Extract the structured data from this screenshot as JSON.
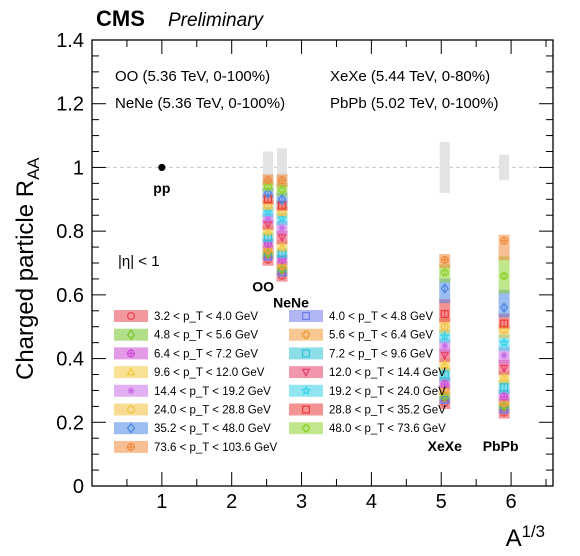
{
  "header": {
    "experiment": "CMS",
    "status": "Preliminary"
  },
  "colors": {
    "bins": [
      "#e8434f",
      "#6f7be8",
      "#72c42a",
      "#f09b36",
      "#cc49d6",
      "#2cc3d6",
      "#f2c83a",
      "#e83f6a",
      "#c86ee8",
      "#38d2ea",
      "#f2bf3b",
      "#ea3a3a",
      "#4b86e6",
      "#8ed12d",
      "#f08a3a"
    ],
    "reference_line": "#c8c8c8",
    "norm_box": "#e3e3e3"
  },
  "chart_data": {
    "type": "scatter",
    "xlabel": "A^{1/3}",
    "ylabel": "Charged particle R_{AA}",
    "xlim": [
      0,
      6.6
    ],
    "ylim": [
      0,
      1.4
    ],
    "x_ticks": [
      "1",
      "2",
      "3",
      "4",
      "5",
      "6"
    ],
    "y_ticks": [
      "0",
      "0.2",
      "0.4",
      "0.6",
      "0.8",
      "1",
      "1.2",
      "1.4"
    ],
    "eta_label": "|η| < 1",
    "collision_systems": [
      {
        "label": "OO (5.36 TeV, 0-100%)"
      },
      {
        "label": "XeXe (5.44 TeV, 0-80%)"
      },
      {
        "label": "NeNe (5.36 TeV, 0-100%)"
      },
      {
        "label": "PbPb (5.02 TeV, 0-100%)"
      }
    ],
    "system_labels": [
      {
        "name": "pp",
        "x": 1.0,
        "y": 0.92
      },
      {
        "name": "OO",
        "x": 2.45,
        "y": 0.61
      },
      {
        "name": "NeNe",
        "x": 2.85,
        "y": 0.56
      },
      {
        "name": "XeXe",
        "x": 5.05,
        "y": 0.11
      },
      {
        "name": "PbPb",
        "x": 5.85,
        "y": 0.11
      }
    ],
    "pp_point": {
      "x": 1.0,
      "y": 1.0
    },
    "reference_line": 1.0,
    "normalization_boxes": [
      {
        "x": 2.52,
        "low": 0.95,
        "high": 1.05
      },
      {
        "x": 2.72,
        "low": 0.94,
        "high": 1.06
      },
      {
        "x": 5.05,
        "low": 0.92,
        "high": 1.08
      },
      {
        "x": 5.9,
        "low": 0.96,
        "high": 1.04
      }
    ],
    "bins": [
      {
        "label": "3.2 < p_T < 4.0 GeV",
        "marker": "circle"
      },
      {
        "label": "4.0 < p_T < 4.8 GeV",
        "marker": "square"
      },
      {
        "label": "4.8 < p_T < 5.6 GeV",
        "marker": "diamond"
      },
      {
        "label": "5.6 < p_T < 6.4 GeV",
        "marker": "cross"
      },
      {
        "label": "6.4 < p_T < 7.2 GeV",
        "marker": "circle-plus"
      },
      {
        "label": "7.2 < p_T < 9.6 GeV",
        "marker": "square"
      },
      {
        "label": "9.6 < p_T < 12.0 GeV",
        "marker": "triangle-up"
      },
      {
        "label": "12.0 < p_T < 14.4 GeV",
        "marker": "triangle-down"
      },
      {
        "label": "14.4 < p_T < 19.2 GeV",
        "marker": "asterisk"
      },
      {
        "label": "19.2 < p_T < 24.0 GeV",
        "marker": "star"
      },
      {
        "label": "24.0 < p_T < 28.8 GeV",
        "marker": "circle"
      },
      {
        "label": "28.8 < p_T < 35.2 GeV",
        "marker": "square"
      },
      {
        "label": "35.2 < p_T < 48.0 GeV",
        "marker": "diamond"
      },
      {
        "label": "48.0 < p_T < 73.6 GeV",
        "marker": "cross"
      },
      {
        "label": "73.6 < p_T < 103.6 GeV",
        "marker": "circle-plus"
      }
    ],
    "series": [
      {
        "system": "OO",
        "x": 2.52,
        "values": [
          0.71,
          0.72,
          0.73,
          0.74,
          0.76,
          0.78,
          0.8,
          0.82,
          0.84,
          0.86,
          0.88,
          0.9,
          0.92,
          0.94,
          0.96
        ]
      },
      {
        "system": "NeNe",
        "x": 2.72,
        "values": [
          0.66,
          0.67,
          0.68,
          0.69,
          0.71,
          0.73,
          0.75,
          0.78,
          0.81,
          0.84,
          0.86,
          0.88,
          0.9,
          0.93,
          0.96
        ]
      },
      {
        "system": "XeXe",
        "x": 5.05,
        "values": [
          0.26,
          0.27,
          0.28,
          0.3,
          0.32,
          0.35,
          0.38,
          0.41,
          0.44,
          0.47,
          0.5,
          0.54,
          0.62,
          0.67,
          0.71
        ]
      },
      {
        "system": "PbPb",
        "x": 5.9,
        "values": [
          0.23,
          0.24,
          0.25,
          0.26,
          0.28,
          0.31,
          0.34,
          0.37,
          0.41,
          0.45,
          0.49,
          0.51,
          0.56,
          0.66,
          0.77
        ]
      }
    ]
  }
}
